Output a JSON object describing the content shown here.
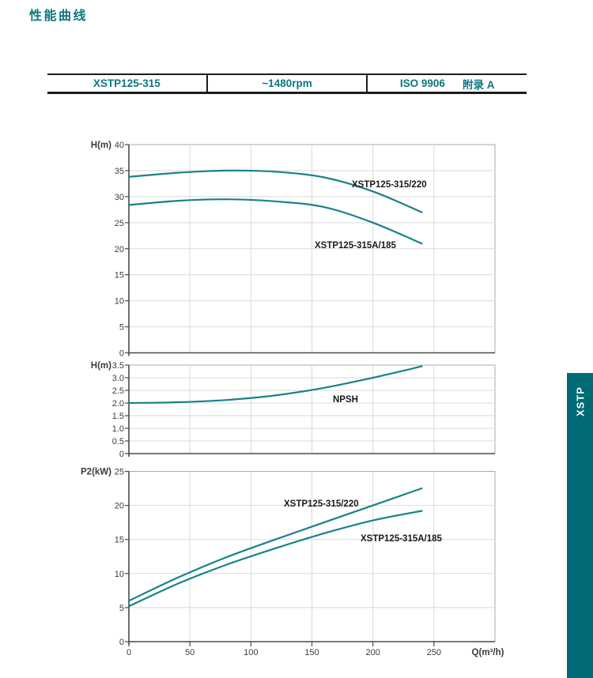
{
  "title": "性能曲线",
  "spec_table": {
    "model": "XSTP125-315",
    "speed": "~1480rpm",
    "standard": "ISO 9906",
    "annex": "附录 A"
  },
  "side_tab": {
    "label": "XSTP",
    "color": "#006b74"
  },
  "colors": {
    "teal_text": "#0d7680",
    "curve": "#17838a",
    "tab_bg": "#006b74",
    "grid": "#d9d9d9",
    "frame": "#a8a8a8",
    "axis": "#4a4a4a",
    "tick_text": "#3c3c3c",
    "annotation_text": "#1a1a1a"
  },
  "chart_data": [
    {
      "type": "line",
      "title": "Head curves",
      "ylabel": "H(m)",
      "ylim": [
        0,
        40
      ],
      "ytick_step": 5,
      "ytick_decimals": 0,
      "xlim": [
        0,
        300
      ],
      "grid": true,
      "series": [
        {
          "name": "XSTP125-315/220",
          "points": [
            [
              0,
              33.8
            ],
            [
              40,
              34.6
            ],
            [
              80,
              35.0
            ],
            [
              120,
              34.8
            ],
            [
              160,
              33.7
            ],
            [
              200,
              31.0
            ],
            [
              240,
              27.0
            ]
          ]
        },
        {
          "name": "XSTP125-315A/185",
          "points": [
            [
              0,
              28.4
            ],
            [
              40,
              29.2
            ],
            [
              80,
              29.5
            ],
            [
              120,
              29.1
            ],
            [
              160,
              28.0
            ],
            [
              200,
              25.0
            ],
            [
              240,
              21.0
            ]
          ]
        }
      ]
    },
    {
      "type": "line",
      "title": "NPSH curve",
      "ylabel": "H(m)",
      "ylim": [
        0,
        3.5
      ],
      "ytick_step": 0.5,
      "ytick_decimals": 1,
      "xlim": [
        0,
        300
      ],
      "grid": true,
      "series": [
        {
          "name": "NPSH",
          "points": [
            [
              0,
              2.0
            ],
            [
              40,
              2.03
            ],
            [
              80,
              2.12
            ],
            [
              120,
              2.3
            ],
            [
              160,
              2.6
            ],
            [
              200,
              3.0
            ],
            [
              240,
              3.45
            ]
          ]
        }
      ]
    },
    {
      "type": "line",
      "title": "Power curves",
      "ylabel": "P2(kW)",
      "ylim": [
        0,
        25
      ],
      "ytick_step": 5,
      "ytick_decimals": 0,
      "xlim": [
        0,
        300
      ],
      "xlabel": "Q(m³/h)",
      "xticks": [
        0,
        50,
        100,
        150,
        200,
        250
      ],
      "grid": true,
      "series": [
        {
          "name": "XSTP125-315/220",
          "points": [
            [
              0,
              6.0
            ],
            [
              40,
              9.4
            ],
            [
              80,
              12.4
            ],
            [
              120,
              15.0
            ],
            [
              160,
              17.5
            ],
            [
              200,
              20.0
            ],
            [
              240,
              22.5
            ]
          ]
        },
        {
          "name": "XSTP125-315A/185",
          "points": [
            [
              0,
              5.2
            ],
            [
              40,
              8.5
            ],
            [
              80,
              11.3
            ],
            [
              120,
              13.7
            ],
            [
              160,
              15.9
            ],
            [
              200,
              17.8
            ],
            [
              240,
              19.2
            ]
          ]
        }
      ]
    }
  ]
}
